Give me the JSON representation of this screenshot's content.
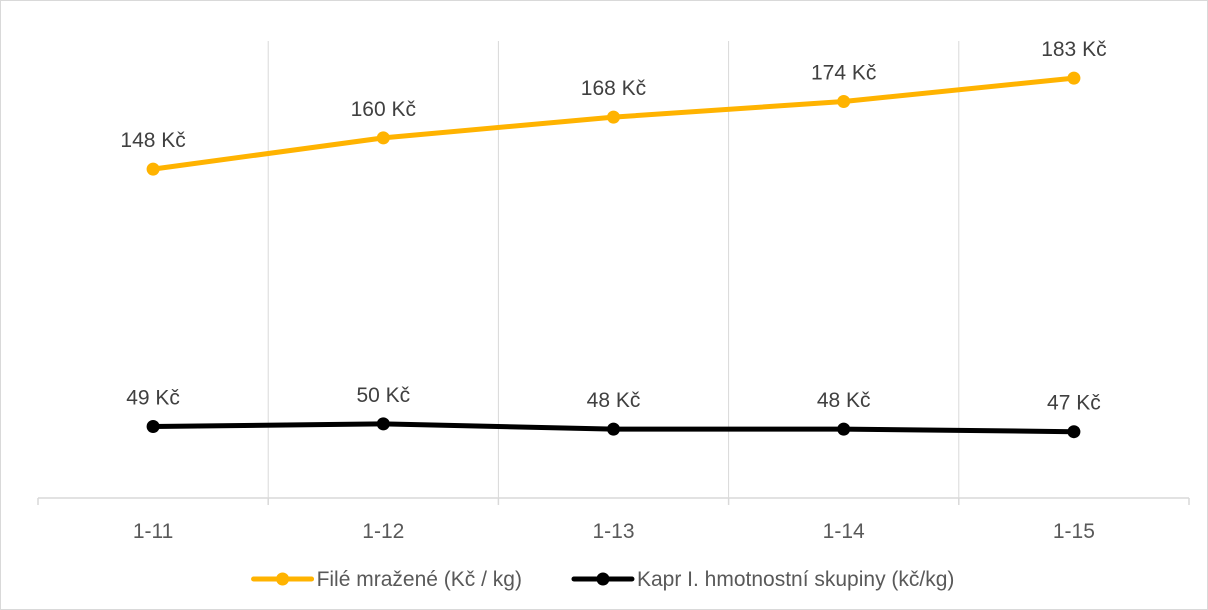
{
  "chart_data": {
    "type": "line",
    "categories": [
      "1-11",
      "1-12",
      "1-13",
      "1-14",
      "1-15"
    ],
    "series": [
      {
        "name": "Filé mražené (Kč / kg)",
        "values": [
          148,
          160,
          168,
          174,
          183
        ],
        "labels": [
          "148 Kč",
          "160 Kč",
          "168 Kč",
          "174 Kč",
          "183 Kč"
        ],
        "color": "#FFB300"
      },
      {
        "name": "Kapr I. hmotnostní skupiny (kč/kg)",
        "values": [
          49,
          50,
          48,
          48,
          47
        ],
        "labels": [
          "49 Kč",
          "50 Kč",
          "48 Kč",
          "48 Kč",
          "47 Kč"
        ],
        "color": "#000000"
      }
    ],
    "ylim": [
      0,
      200
    ],
    "grid": "vertical",
    "legend": "bottom"
  }
}
